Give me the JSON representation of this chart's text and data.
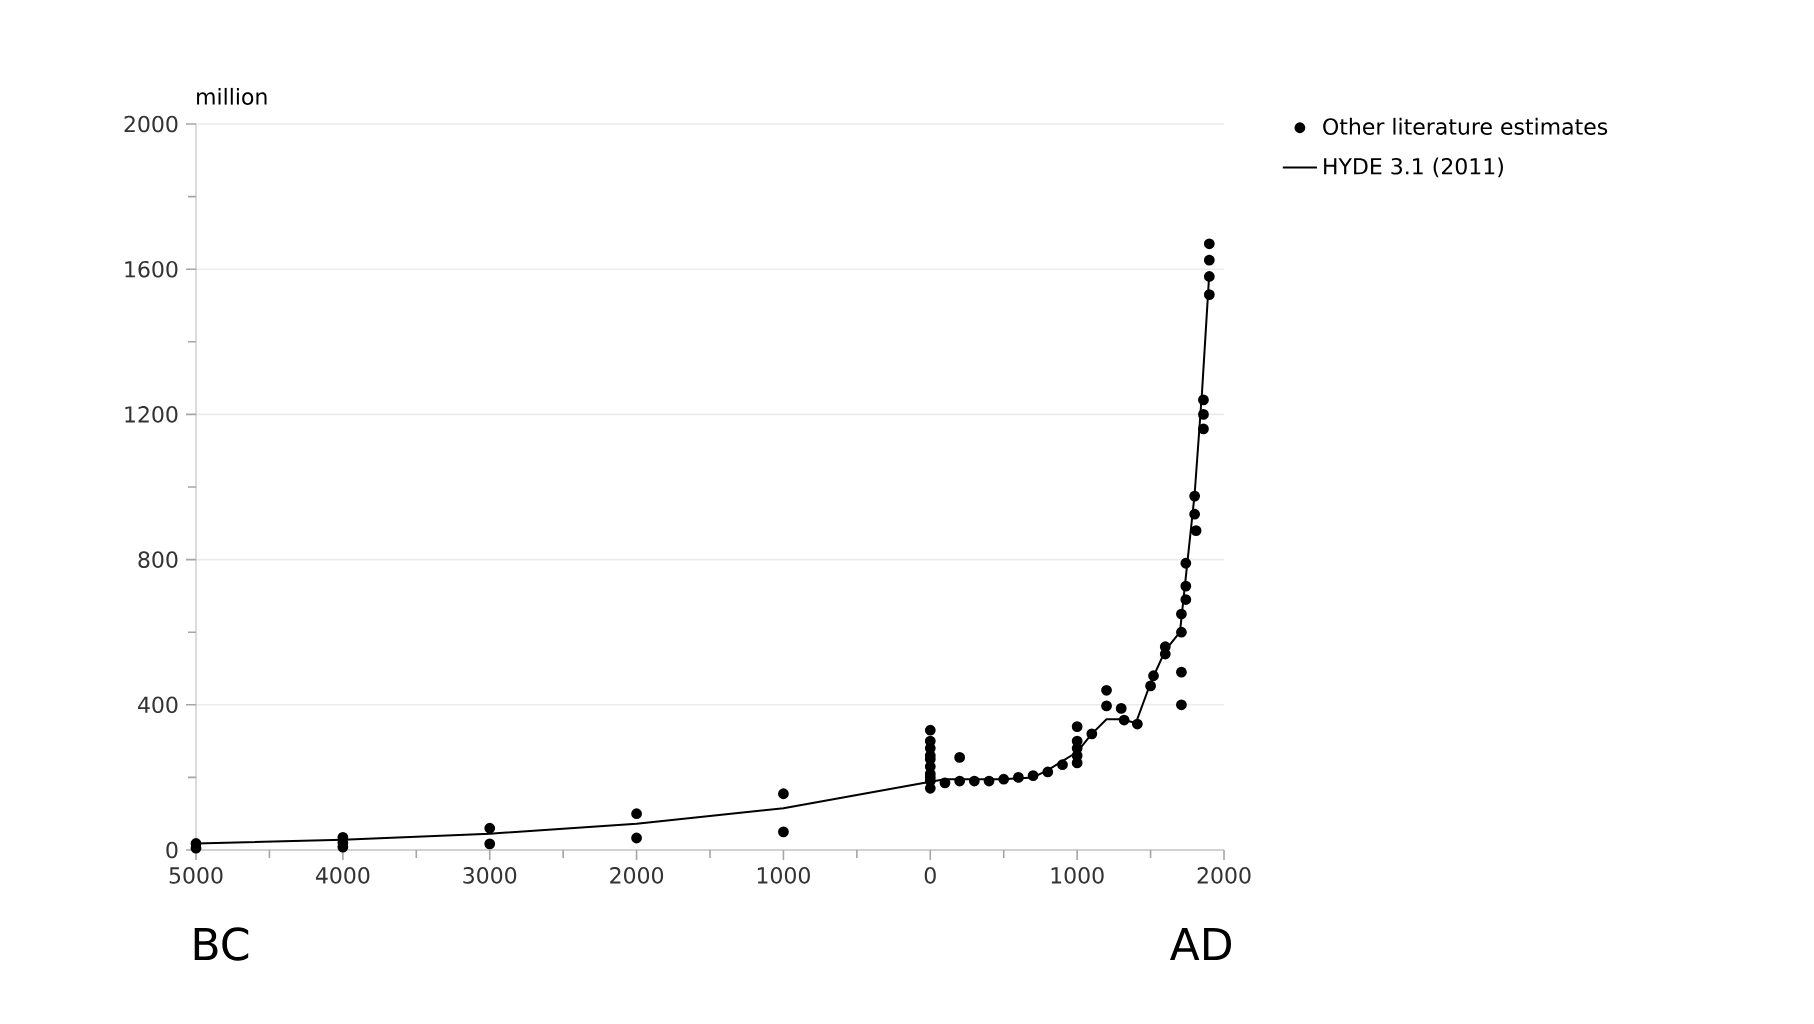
{
  "chart_data": {
    "type": "scatter",
    "ylabel": "million",
    "annotations": [
      "BC",
      "AD"
    ],
    "xlim": [
      -5000,
      2000
    ],
    "ylim": [
      0,
      2000
    ],
    "xticks": [
      {
        "value": -5000,
        "label": "5000"
      },
      {
        "value": -4000,
        "label": "4000"
      },
      {
        "value": -3000,
        "label": "3000"
      },
      {
        "value": -2000,
        "label": "2000"
      },
      {
        "value": -1000,
        "label": "1000"
      },
      0,
      1000,
      2000
    ],
    "yticks": [
      0,
      400,
      800,
      1200,
      1600,
      2000
    ],
    "grid": "y",
    "legend": "top right",
    "series": [
      {
        "name": "Other literature estimates",
        "marker": "circle",
        "color": "#000000",
        "x": [
          -5000,
          -5000,
          -4000,
          -4000,
          -4000,
          -3000,
          -3000,
          -2000,
          -2000,
          -1000,
          -1000,
          0,
          0,
          0,
          0,
          0,
          0,
          0,
          0,
          0,
          0,
          100,
          200,
          200,
          300,
          400,
          500,
          600,
          700,
          800,
          900,
          1000,
          1000,
          1000,
          1000,
          1000,
          1100,
          1200,
          1200,
          1300,
          1320,
          1410,
          1500,
          1520,
          1600,
          1600,
          1710,
          1710,
          1710,
          1710,
          1740,
          1740,
          1740,
          1800,
          1800,
          1810,
          1860,
          1860,
          1860,
          1900,
          1900,
          1900,
          1900
        ],
        "values": [
          5,
          18,
          35,
          20,
          8,
          60,
          17,
          100,
          33,
          155,
          50,
          330,
          300,
          280,
          260,
          250,
          230,
          210,
          200,
          190,
          170,
          185,
          255,
          190,
          190,
          190,
          195,
          200,
          205,
          215,
          235,
          340,
          300,
          280,
          260,
          240,
          320,
          440,
          397,
          390,
          358,
          347,
          452,
          480,
          560,
          540,
          650,
          600,
          490,
          400,
          790,
          727,
          690,
          975,
          925,
          880,
          1240,
          1200,
          1160,
          1670,
          1625,
          1580,
          1530
        ]
      },
      {
        "name": "HYDE 3.1 (2011)",
        "type": "line",
        "marker": "none",
        "line_style": "solid",
        "color": "#000000",
        "x": [
          -5000,
          -4000,
          -3000,
          -2000,
          -1000,
          0,
          100,
          500,
          700,
          800,
          1000,
          1100,
          1200,
          1300,
          1400,
          1500,
          1600,
          1700,
          1750,
          1800,
          1850,
          1900
        ],
        "values": [
          18,
          28,
          45,
          72,
          115,
          188,
          195,
          195,
          200,
          220,
          270,
          320,
          360,
          360,
          350,
          460,
          550,
          600,
          790,
          980,
          1260,
          1590
        ]
      }
    ]
  }
}
